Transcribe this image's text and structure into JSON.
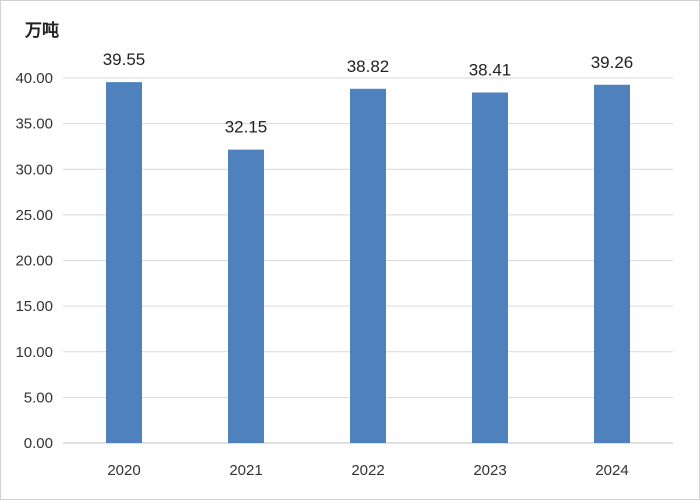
{
  "chart_data": {
    "type": "bar",
    "ylabel": "万吨",
    "categories": [
      "2020",
      "2021",
      "2022",
      "2023",
      "2024"
    ],
    "values": [
      39.55,
      32.15,
      38.82,
      38.41,
      39.26
    ],
    "value_labels": [
      "39.55",
      "32.15",
      "38.82",
      "38.41",
      "39.26"
    ],
    "ylim": [
      0,
      40
    ],
    "yticks": [
      "0.00",
      "5.00",
      "10.00",
      "15.00",
      "20.00",
      "25.00",
      "30.00",
      "35.00",
      "40.00"
    ],
    "ytick_values": [
      0,
      5,
      10,
      15,
      20,
      25,
      30,
      35,
      40
    ],
    "grid": true,
    "bar_color": "#4f81bd",
    "grid_color": "#d9d9d9",
    "axis_color": "#bfbfbf"
  }
}
